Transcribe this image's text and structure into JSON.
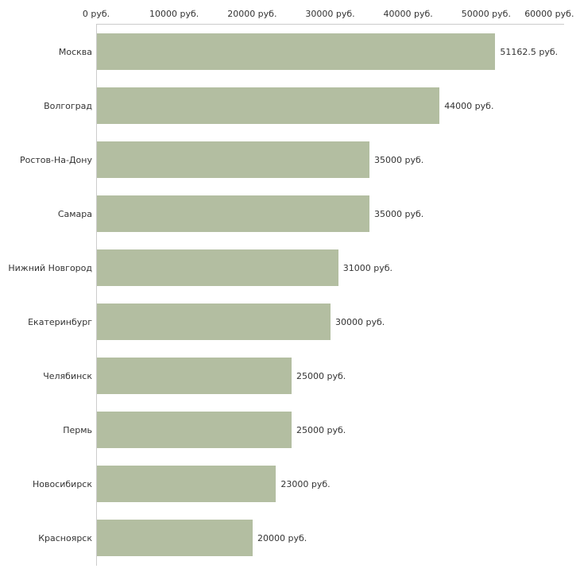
{
  "chart_data": {
    "type": "bar",
    "orientation": "horizontal",
    "title": "",
    "xlabel": "",
    "ylabel": "",
    "categories": [
      "Москва",
      "Волгоград",
      "Ростов-На-Дону",
      "Самара",
      "Нижний Новгород",
      "Екатеринбург",
      "Челябинск",
      "Пермь",
      "Новосибирск",
      "Красноярск"
    ],
    "values": [
      51162.5,
      44000,
      35000,
      35000,
      31000,
      30000,
      25000,
      25000,
      23000,
      20000
    ],
    "value_labels": [
      "51162.5 руб.",
      "44000 руб.",
      "35000 руб.",
      "35000 руб.",
      "31000 руб.",
      "30000 руб.",
      "25000 руб.",
      "25000 руб.",
      "23000 руб.",
      "20000 руб."
    ],
    "x_axis": {
      "position": "top",
      "min": 0,
      "max": 60000,
      "ticks": [
        0,
        10000,
        20000,
        30000,
        40000,
        50000,
        60000
      ],
      "tick_labels": [
        "0 руб.",
        "10000 руб.",
        "20000 руб.",
        "30000 руб.",
        "40000 руб.",
        "50000 руб.",
        "60000 руб."
      ]
    },
    "grid": false,
    "legend": false,
    "colors": {
      "bar": "#b3bea1",
      "axis_line": "#cccccc",
      "text": "#333333",
      "background": "#ffffff"
    }
  }
}
